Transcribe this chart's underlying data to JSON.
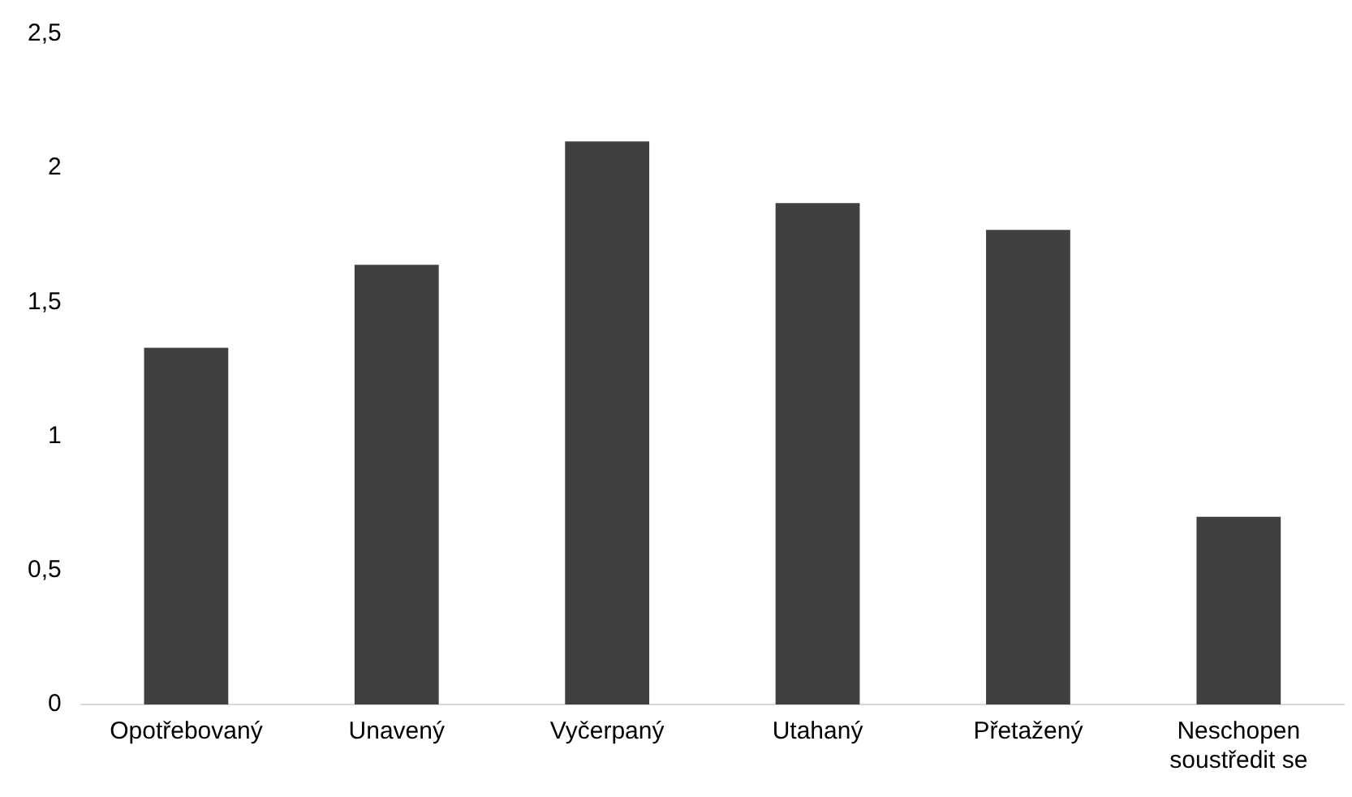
{
  "chart_data": {
    "type": "bar",
    "categories": [
      "Opotřebovaný",
      "Unavený",
      "Vyčerpaný",
      "Utahaný",
      "Přetažený",
      "Neschopen soustředit se"
    ],
    "values": [
      1.33,
      1.64,
      2.1,
      1.87,
      1.77,
      0.7
    ],
    "color": "#404040",
    "ylim": [
      0,
      2.5
    ],
    "yticks": [
      0,
      {
        "value": 0.5,
        "label": "0,5"
      },
      1,
      {
        "value": 1.5,
        "label": "1,5"
      },
      2,
      {
        "value": 2.5,
        "label": "2,5"
      }
    ],
    "grid": false,
    "legend": false
  }
}
